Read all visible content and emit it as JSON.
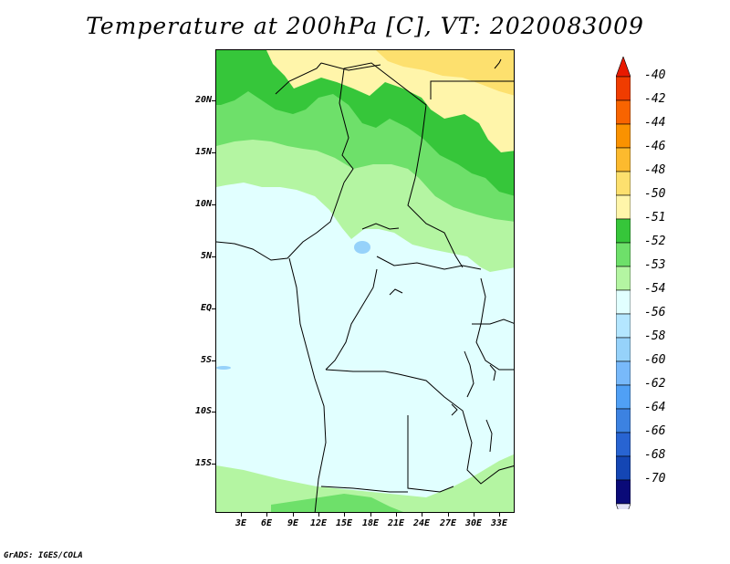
{
  "title": "Temperature at 200hPa [C], VT: 2020083009",
  "footer": "GrADS: IGES/COLA",
  "lat_labels": [
    "20N",
    "15N",
    "10N",
    "5N",
    "EQ",
    "5S",
    "10S",
    "15S"
  ],
  "lon_labels": [
    "3E",
    "6E",
    "9E",
    "12E",
    "15E",
    "18E",
    "21E",
    "24E",
    "27E",
    "30E",
    "33E"
  ],
  "legend": {
    "labels": [
      "-40",
      "-42",
      "-44",
      "-46",
      "-48",
      "-50",
      "-51",
      "-52",
      "-53",
      "-54",
      "-56",
      "-58",
      "-60",
      "-62",
      "-64",
      "-66",
      "-68",
      "-70"
    ],
    "colors": [
      "#e81a00",
      "#f03c00",
      "#f86400",
      "#fa9200",
      "#fcba2e",
      "#fde06e",
      "#fff5aa",
      "#36c63a",
      "#6ee06a",
      "#b4f5a2",
      "#e1ffff",
      "#b4e6ff",
      "#96d2fa",
      "#78b9fa",
      "#50a0f5",
      "#3c82e1",
      "#2864d2",
      "#1446b4",
      "#0a0a78",
      "#e1e1f5"
    ]
  },
  "map_colors": {
    "bg": "#e1ffff",
    "pale_yellow": "#fff5aa",
    "yellow": "#fde06e",
    "dark_green": "#36c63a",
    "mid_green": "#6ee06a",
    "light_green": "#b4f5a2",
    "light_blue": "#96d2fa"
  }
}
